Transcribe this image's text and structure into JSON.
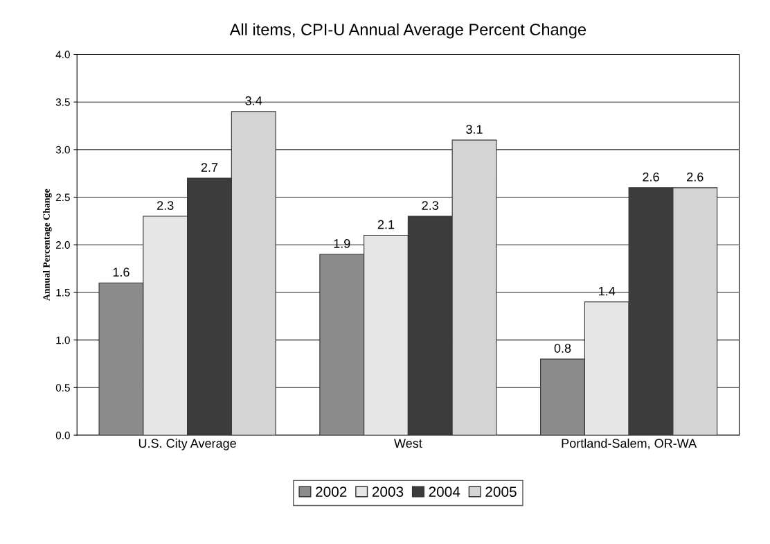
{
  "chart_data": {
    "type": "bar",
    "title": "All items, CPI-U Annual Average Percent Change",
    "ylabel": "Annual Percentage Change",
    "categories": [
      "U.S. City Average",
      "West",
      "Portland-Salem, OR-WA"
    ],
    "series": [
      {
        "name": "2002",
        "color": "#8c8c8c",
        "values": [
          1.6,
          1.9,
          0.8
        ]
      },
      {
        "name": "2003",
        "color": "#e6e6e6",
        "values": [
          2.3,
          2.1,
          1.4
        ]
      },
      {
        "name": "2004",
        "color": "#3c3c3c",
        "values": [
          2.7,
          2.3,
          2.6
        ]
      },
      {
        "name": "2005",
        "color": "#d4d4d4",
        "values": [
          3.4,
          3.1,
          2.6
        ]
      }
    ],
    "ylim": [
      0,
      4
    ],
    "yticks": [
      {
        "value": 0,
        "label": "0.0"
      },
      {
        "value": 0.5,
        "label": "0.5"
      },
      {
        "value": 1,
        "label": "1.0"
      },
      {
        "value": 1.5,
        "label": "1.5"
      },
      {
        "value": 2,
        "label": "2.0"
      },
      {
        "value": 2.5,
        "label": "2.5"
      },
      {
        "value": 3,
        "label": "3.0"
      },
      {
        "value": 3.5,
        "label": "3.5"
      },
      {
        "value": 4,
        "label": "4.0"
      }
    ],
    "grid": "y",
    "legend": "bottom",
    "data_labels": true
  }
}
